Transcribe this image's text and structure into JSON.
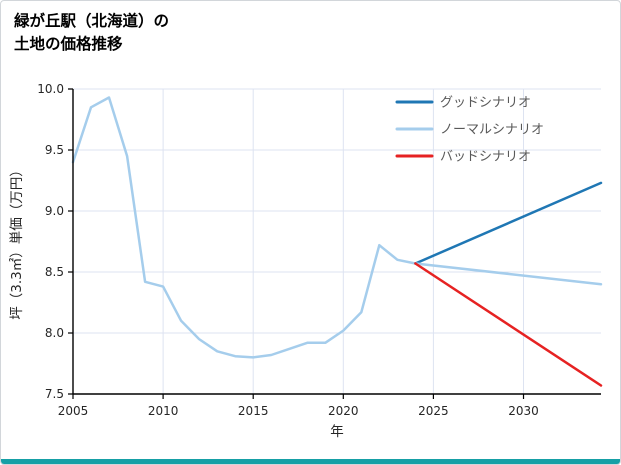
{
  "chart_data": {
    "type": "line",
    "title_lines": [
      "緑が丘駅（北海道）の",
      "土地の価格推移"
    ],
    "xlabel": "年",
    "ylabel": "坪（3.3㎡）単価（万円）",
    "xlim": [
      2005,
      2034.3
    ],
    "ylim": [
      7.5,
      10.0
    ],
    "xticks": [
      2005,
      2010,
      2015,
      2020,
      2025,
      2030
    ],
    "yticks": [
      7.5,
      8.0,
      8.5,
      9.0,
      9.5,
      10.0
    ],
    "grid": true,
    "legend_position": "upper right",
    "colors": {
      "grid": "#dde3f1",
      "axis": "#000000",
      "tick": "#262626",
      "legend_text": "#595959",
      "accent_bar": "#16a0a6",
      "good": "#1f77b4",
      "normal": "#a5cdec",
      "bad": "#e62222"
    },
    "series": [
      {
        "id": "history",
        "name": "",
        "color": "#a5cdec",
        "x": [
          2005,
          2006,
          2007,
          2008,
          2009,
          2010,
          2011,
          2012,
          2013,
          2014,
          2015,
          2016,
          2017,
          2018,
          2019,
          2020,
          2021,
          2022,
          2023,
          2024
        ],
        "values": [
          9.4,
          9.85,
          9.93,
          9.45,
          8.42,
          8.38,
          8.1,
          7.95,
          7.85,
          7.81,
          7.8,
          7.82,
          7.87,
          7.92,
          7.92,
          8.02,
          8.17,
          8.72,
          8.6,
          8.57
        ]
      },
      {
        "id": "good",
        "name": "グッドシナリオ",
        "color": "#1f77b4",
        "x": [
          2024,
          2034.3
        ],
        "values": [
          8.57,
          9.23
        ]
      },
      {
        "id": "normal",
        "name": "ノーマルシナリオ",
        "color": "#a5cdec",
        "x": [
          2024,
          2034.3
        ],
        "values": [
          8.57,
          8.4
        ]
      },
      {
        "id": "bad",
        "name": "バッドシナリオ",
        "color": "#e62222",
        "x": [
          2024,
          2034.3
        ],
        "values": [
          8.57,
          7.57
        ]
      }
    ],
    "legend": [
      {
        "label": "グッドシナリオ",
        "color": "#1f77b4"
      },
      {
        "label": "ノーマルシナリオ",
        "color": "#a5cdec"
      },
      {
        "label": "バッドシナリオ",
        "color": "#e62222"
      }
    ]
  }
}
